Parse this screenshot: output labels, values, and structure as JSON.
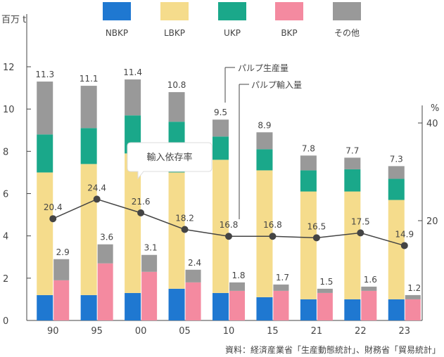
{
  "chart_data": {
    "type": "bar",
    "stacked": true,
    "categories": [
      "90",
      "95",
      "00",
      "05",
      "10",
      "15",
      "21",
      "22",
      "23"
    ],
    "y_unit_label": "百万 t",
    "ylim": [
      0,
      12
    ],
    "yticks": [
      0,
      2,
      4,
      6,
      8,
      10,
      12
    ],
    "y2_unit_label": "%",
    "y2ticks": [
      20,
      40
    ],
    "legend": {
      "position": "top",
      "entries": [
        {
          "name": "NBKP",
          "color": "#1f78d1"
        },
        {
          "name": "LBKP",
          "color": "#f5dc8c"
        },
        {
          "name": "UKP",
          "color": "#1aa88a"
        },
        {
          "name": "BKP",
          "color": "#f48aa0"
        },
        {
          "name": "その他",
          "color": "#999999"
        }
      ]
    },
    "production": {
      "label": "パルプ生産量",
      "totals": [
        "11.3",
        "11.1",
        "11.4",
        "10.8",
        "9.5",
        "8.9",
        "7.8",
        "7.7",
        "7.3"
      ],
      "segments": {
        "NBKP": [
          1.2,
          1.2,
          1.3,
          1.5,
          1.3,
          1.1,
          1.0,
          1.0,
          1.0
        ],
        "LBKP": [
          5.8,
          6.2,
          6.6,
          5.5,
          6.3,
          6.0,
          5.1,
          5.1,
          4.7
        ],
        "UKP": [
          1.8,
          1.7,
          1.8,
          2.4,
          1.1,
          1.0,
          1.0,
          1.05,
          1.0
        ],
        "その他": [
          2.5,
          2.0,
          1.7,
          1.4,
          0.8,
          0.8,
          0.7,
          0.55,
          0.6
        ]
      }
    },
    "imports": {
      "label": "パルプ輸入量",
      "totals": [
        "2.9",
        "3.6",
        "3.1",
        "2.4",
        "1.8",
        "1.7",
        "1.5",
        "1.6",
        "1.2"
      ],
      "segments": {
        "BKP": [
          1.9,
          2.7,
          2.3,
          1.8,
          1.4,
          1.4,
          1.3,
          1.4,
          1.0
        ],
        "その他": [
          1.0,
          0.9,
          0.8,
          0.6,
          0.4,
          0.3,
          0.2,
          0.2,
          0.2
        ]
      }
    },
    "import_dependency": {
      "label": "輸入依存率",
      "labels": [
        "20.4",
        "24.4",
        "21.6",
        "18.2",
        "16.8",
        "16.8",
        "16.5",
        "17.5",
        "14.9"
      ],
      "values": [
        20.4,
        24.4,
        21.6,
        18.2,
        16.8,
        16.8,
        16.5,
        17.5,
        14.9
      ],
      "color": "#444444"
    },
    "source": "資料：経済産業省「生産動態統計」、財務省「貿易統計」"
  }
}
